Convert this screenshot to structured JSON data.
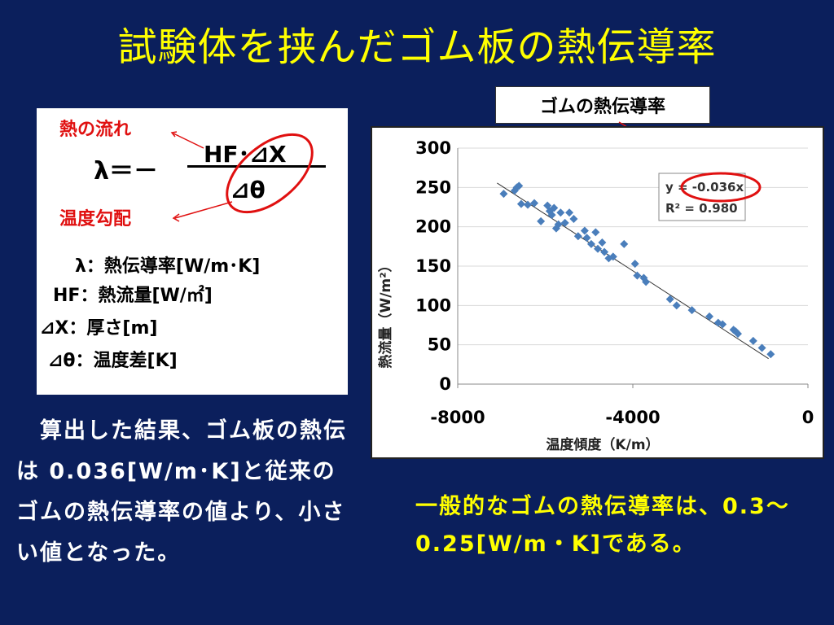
{
  "title": "試験体を挟んだゴム板の熱伝導率",
  "callout_label": "ゴムの熱伝導率",
  "formula": {
    "heat_flow_label": "熱の流れ",
    "temp_gradient_label": "温度勾配",
    "lhs": "λ＝－",
    "numerator": "HF･⊿X",
    "denominator": "⊿θ",
    "definitions": [
      "λ：熱伝導率[W/m･K]",
      "HF：熱流量[W/㎡]",
      "⊿X：厚さ[m]",
      "⊿θ：温度差[K]"
    ]
  },
  "body_text": "　算出した結果、ゴム板の熱伝は 0.036[W/m･K]と従来の ゴムの熱伝導率の値より、小さい値となった。",
  "yellow_text": "一般的なゴムの熱伝導率は、0.3～0.25[W/m・K]である。",
  "colors": {
    "background": "#0b1f5c",
    "title": "#ffff00",
    "point": "#4a7ebb",
    "highlight": "#e01010"
  },
  "chart_data": {
    "type": "scatter",
    "xlabel": "温度傾度（K/m）",
    "ylabel": "熱流量（W/m²）",
    "xlim": [
      -8000,
      0
    ],
    "ylim": [
      0,
      300
    ],
    "x_ticks": [
      "-8000",
      "-4000",
      "0"
    ],
    "y_ticks": [
      "0",
      "50",
      "100",
      "150",
      "200",
      "250",
      "300"
    ],
    "grid": "horizontal",
    "trendline": {
      "slope": -0.036,
      "intercept": 0
    },
    "equation_label": "y = -0.036x",
    "r2_label": "R² = 0.980",
    "points": [
      [
        -6950,
        242
      ],
      [
        -6700,
        246
      ],
      [
        -6650,
        250
      ],
      [
        -6600,
        252
      ],
      [
        -6550,
        229
      ],
      [
        -6400,
        228
      ],
      [
        -6250,
        230
      ],
      [
        -6100,
        207
      ],
      [
        -5950,
        227
      ],
      [
        -5900,
        220
      ],
      [
        -5850,
        215
      ],
      [
        -5800,
        224
      ],
      [
        -5750,
        198
      ],
      [
        -5700,
        203
      ],
      [
        -5650,
        218
      ],
      [
        -5550,
        205
      ],
      [
        -5450,
        218
      ],
      [
        -5350,
        210
      ],
      [
        -5250,
        188
      ],
      [
        -5100,
        195
      ],
      [
        -5050,
        186
      ],
      [
        -4950,
        178
      ],
      [
        -4850,
        193
      ],
      [
        -4800,
        172
      ],
      [
        -4700,
        180
      ],
      [
        -4650,
        168
      ],
      [
        -4550,
        160
      ],
      [
        -4450,
        162
      ],
      [
        -4200,
        178
      ],
      [
        -3950,
        153
      ],
      [
        -3900,
        138
      ],
      [
        -3750,
        135
      ],
      [
        -3700,
        130
      ],
      [
        -3150,
        108
      ],
      [
        -3000,
        100
      ],
      [
        -2650,
        94
      ],
      [
        -2250,
        86
      ],
      [
        -2050,
        78
      ],
      [
        -1950,
        76
      ],
      [
        -1700,
        69
      ],
      [
        -1650,
        67
      ],
      [
        -1600,
        64
      ],
      [
        -1250,
        55
      ],
      [
        -1050,
        46
      ],
      [
        -850,
        38
      ]
    ]
  }
}
